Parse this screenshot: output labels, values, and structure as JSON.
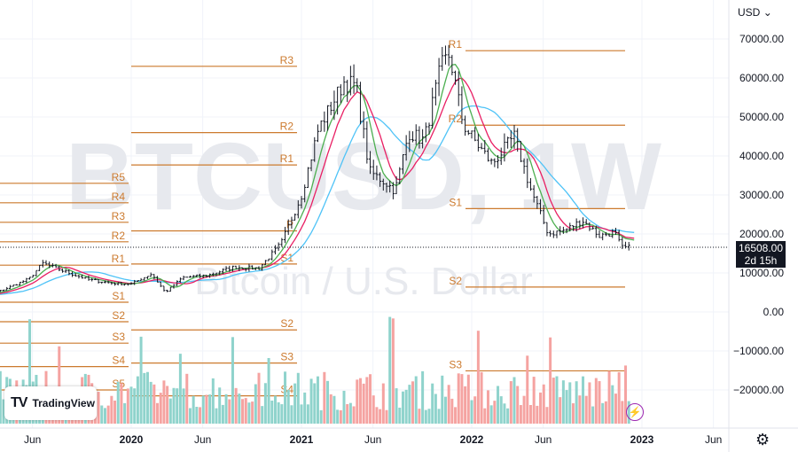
{
  "watermark": {
    "ticker": "BTCUSD, 1W",
    "description": "Bitcoin / U.S. Dollar"
  },
  "currency_label": "USD",
  "last_price": {
    "value": "16508.00",
    "countdown": "2d 15h"
  },
  "branding": {
    "name": "TradingView"
  },
  "colors": {
    "up": "#26a69a",
    "down": "#ef5350",
    "pivot": "#cc7a2e",
    "ma_green": "#4caf50",
    "ma_pink": "#e91e63",
    "ma_blue": "#4fc3f7",
    "volume_up": "#8fd3cc",
    "volume_down": "#f5a3a1"
  },
  "icons": {
    "settings": "gear-icon",
    "flash": "lightning-icon",
    "currency_menu": "chevron-down-icon"
  },
  "chart_data": {
    "type": "candlestick",
    "symbol": "BTCUSD",
    "interval": "1W",
    "y_axis_ticks": [
      "70000.00",
      "60000.00",
      "50000.00",
      "40000.00",
      "30000.00",
      "20000.00",
      "10000.00",
      "0.00",
      "−10000.00",
      "−20000.00"
    ],
    "ylim": [
      -26000,
      71000
    ],
    "x_axis_ticks": [
      {
        "t": 2019.42,
        "label": "Jun",
        "bold": false
      },
      {
        "t": 2020.0,
        "label": "2020",
        "bold": true
      },
      {
        "t": 2020.42,
        "label": "Jun",
        "bold": false
      },
      {
        "t": 2021.0,
        "label": "2021",
        "bold": true
      },
      {
        "t": 2021.42,
        "label": "Jun",
        "bold": false
      },
      {
        "t": 2022.0,
        "label": "2022",
        "bold": true
      },
      {
        "t": 2022.42,
        "label": "Jun",
        "bold": false
      },
      {
        "t": 2023.0,
        "label": "2023",
        "bold": true
      },
      {
        "t": 2023.42,
        "label": "Jun",
        "bold": false
      }
    ],
    "price_anchors": [
      [
        2019.0,
        3700
      ],
      [
        2019.22,
        5200
      ],
      [
        2019.4,
        8500
      ],
      [
        2019.48,
        12500
      ],
      [
        2019.6,
        10500
      ],
      [
        2019.75,
        8300
      ],
      [
        2019.9,
        7300
      ],
      [
        2020.0,
        7200
      ],
      [
        2020.12,
        9800
      ],
      [
        2020.2,
        5000
      ],
      [
        2020.3,
        8800
      ],
      [
        2020.45,
        9400
      ],
      [
        2020.6,
        11500
      ],
      [
        2020.75,
        11200
      ],
      [
        2020.88,
        17500
      ],
      [
        2021.0,
        30000
      ],
      [
        2021.1,
        47000
      ],
      [
        2021.25,
        59000
      ],
      [
        2021.32,
        58000
      ],
      [
        2021.4,
        36000
      ],
      [
        2021.5,
        33000
      ],
      [
        2021.55,
        31000
      ],
      [
        2021.63,
        46000
      ],
      [
        2021.72,
        44000
      ],
      [
        2021.82,
        63000
      ],
      [
        2021.87,
        66000
      ],
      [
        2021.95,
        48000
      ],
      [
        2022.05,
        42000
      ],
      [
        2022.12,
        38000
      ],
      [
        2022.25,
        45000
      ],
      [
        2022.35,
        31000
      ],
      [
        2022.45,
        20000
      ],
      [
        2022.55,
        21000
      ],
      [
        2022.65,
        23500
      ],
      [
        2022.75,
        19500
      ],
      [
        2022.84,
        20500
      ],
      [
        2022.88,
        16500
      ],
      [
        2022.93,
        16508
      ]
    ],
    "pivots": [
      {
        "label": "R5",
        "y": 33000
      },
      {
        "label": "R4",
        "y": 28000
      },
      {
        "label": "R3",
        "y": 23000
      },
      {
        "label": "R2",
        "y": 18000
      },
      {
        "label": "R1",
        "y": 12000
      },
      {
        "label": "S1",
        "y": 2500
      },
      {
        "label": "S2",
        "y": -2500
      },
      {
        "label": "S3",
        "y": -8000
      },
      {
        "label": "S4",
        "y": -14000
      },
      {
        "label": "S5",
        "y": -20000
      },
      {
        "label": "R3",
        "y": 63000
      },
      {
        "label": "R2",
        "y": 46000
      },
      {
        "label": "R1",
        "y": 37700
      },
      {
        "label": "P",
        "y": 20800
      },
      {
        "label": "S1",
        "y": 12300
      },
      {
        "label": "S2",
        "y": -4600
      },
      {
        "label": "S3",
        "y": -13100
      },
      {
        "label": "S4",
        "y": -21500
      },
      {
        "label": "R1",
        "y": 67000
      },
      {
        "label": "R2",
        "y": 47900
      },
      {
        "label": "S1",
        "y": 26500
      },
      {
        "label": "S2",
        "y": 6400
      },
      {
        "label": "S3",
        "y": -15100
      }
    ]
  }
}
